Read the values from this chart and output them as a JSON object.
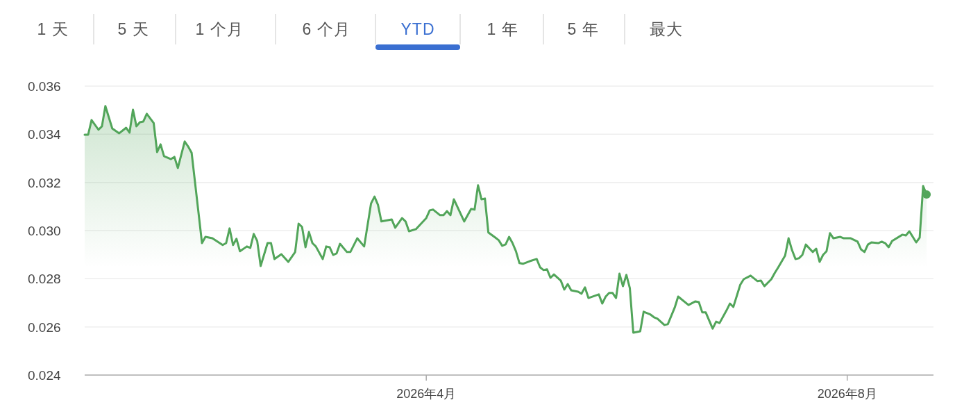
{
  "chart_data": {
    "type": "area",
    "color": "#52a55a",
    "grid": "y",
    "marker": "none",
    "annotations": [
      "1 天",
      "5 天",
      "1 个月",
      "6 个月",
      "YTD",
      "1 年",
      "5 年",
      "最大"
    ],
    "xlim": [
      "2025-12-23",
      "2026-08-26"
    ],
    "ylim": [
      0.024,
      0.036
    ],
    "yticks": [
      0.024,
      0.026,
      0.028,
      {
        "value": 0.03,
        "label": "0.030"
      },
      0.032,
      0.034,
      0.036
    ],
    "xticks": [
      {
        "value": "2026-04-01",
        "label": "2026年4月"
      },
      {
        "value": "2026-08-01",
        "label": "2026年8月"
      }
    ],
    "x": [
      "2025-12-23",
      "2025-12-24",
      "2025-12-25",
      "2025-12-27",
      "2025-12-28",
      "2025-12-29",
      "2025-12-31",
      "2026-01-02",
      "2026-01-04",
      "2026-01-05",
      "2026-01-06",
      "2026-01-07",
      "2026-01-08",
      "2026-01-09",
      "2026-01-10",
      "2026-01-12",
      "2026-01-13",
      "2026-01-14",
      "2026-01-15",
      "2026-01-17",
      "2026-01-18",
      "2026-01-19",
      "2026-01-21",
      "2026-01-22",
      "2026-01-23",
      "2026-01-26",
      "2026-01-27",
      "2026-01-29",
      "2026-02-01",
      "2026-02-02",
      "2026-02-03",
      "2026-02-04",
      "2026-02-05",
      "2026-02-06",
      "2026-02-08",
      "2026-02-09",
      "2026-02-10",
      "2026-02-11",
      "2026-02-12",
      "2026-02-14",
      "2026-02-15",
      "2026-02-16",
      "2026-02-18",
      "2026-02-20",
      "2026-02-22",
      "2026-02-23",
      "2026-02-24",
      "2026-02-25",
      "2026-02-26",
      "2026-02-27",
      "2026-02-28",
      "2026-03-02",
      "2026-03-03",
      "2026-03-04",
      "2026-03-05",
      "2026-03-06",
      "2026-03-07",
      "2026-03-09",
      "2026-03-10",
      "2026-03-12",
      "2026-03-14",
      "2026-03-16",
      "2026-03-17",
      "2026-03-18",
      "2026-03-19",
      "2026-03-22",
      "2026-03-23",
      "2026-03-25",
      "2026-03-26",
      "2026-03-27",
      "2026-03-29",
      "2026-04-01",
      "2026-04-02",
      "2026-04-03",
      "2026-04-05",
      "2026-04-06",
      "2026-04-07",
      "2026-04-08",
      "2026-04-09",
      "2026-04-12",
      "2026-04-14",
      "2026-04-15",
      "2026-04-16",
      "2026-04-17",
      "2026-04-18",
      "2026-04-19",
      "2026-04-21",
      "2026-04-22",
      "2026-04-23",
      "2026-04-24",
      "2026-04-25",
      "2026-04-26",
      "2026-04-27",
      "2026-04-28",
      "2026-04-29",
      "2026-05-01",
      "2026-05-03",
      "2026-05-04",
      "2026-05-05",
      "2026-05-06",
      "2026-05-07",
      "2026-05-08",
      "2026-05-10",
      "2026-05-11",
      "2026-05-12",
      "2026-05-13",
      "2026-05-15",
      "2026-05-16",
      "2026-05-17",
      "2026-05-18",
      "2026-05-21",
      "2026-05-22",
      "2026-05-23",
      "2026-05-24",
      "2026-05-25",
      "2026-05-26",
      "2026-05-27",
      "2026-05-28",
      "2026-05-29",
      "2026-05-30",
      "2026-05-31",
      "2026-06-02",
      "2026-06-03",
      "2026-06-05",
      "2026-06-06",
      "2026-06-07",
      "2026-06-09",
      "2026-06-10",
      "2026-06-12",
      "2026-06-13",
      "2026-06-16",
      "2026-06-18",
      "2026-06-19",
      "2026-06-20",
      "2026-06-21",
      "2026-06-23",
      "2026-06-24",
      "2026-06-25",
      "2026-06-27",
      "2026-06-28",
      "2026-06-29",
      "2026-07-01",
      "2026-07-02",
      "2026-07-04",
      "2026-07-06",
      "2026-07-07",
      "2026-07-08",
      "2026-07-10",
      "2026-07-11",
      "2026-07-12",
      "2026-07-14",
      "2026-07-15",
      "2026-07-16",
      "2026-07-17",
      "2026-07-18",
      "2026-07-19",
      "2026-07-20",
      "2026-07-22",
      "2026-07-23",
      "2026-07-24",
      "2026-07-25",
      "2026-07-26",
      "2026-07-27",
      "2026-07-28",
      "2026-07-30",
      "2026-07-31",
      "2026-08-02",
      "2026-08-04",
      "2026-08-05",
      "2026-08-06",
      "2026-08-07",
      "2026-08-08",
      "2026-08-10",
      "2026-08-11",
      "2026-08-12",
      "2026-08-13",
      "2026-08-14",
      "2026-08-17",
      "2026-08-18",
      "2026-08-19",
      "2026-08-21",
      "2026-08-22",
      "2026-08-23",
      "2026-08-24"
    ],
    "values": [
      0.03398,
      0.03398,
      0.03459,
      0.03419,
      0.03433,
      0.03517,
      0.03424,
      0.03404,
      0.03427,
      0.03407,
      0.03502,
      0.03433,
      0.0345,
      0.03453,
      0.03485,
      0.03447,
      0.03326,
      0.03358,
      0.03309,
      0.03297,
      0.03306,
      0.0326,
      0.0337,
      0.03349,
      0.03323,
      0.02948,
      0.02974,
      0.02968,
      0.0294,
      0.02948,
      0.03009,
      0.0294,
      0.02966,
      0.02914,
      0.02934,
      0.02928,
      0.02986,
      0.02957,
      0.02853,
      0.02948,
      0.02948,
      0.02882,
      0.02902,
      0.0287,
      0.02911,
      0.03029,
      0.03015,
      0.02931,
      0.02994,
      0.02948,
      0.02934,
      0.02882,
      0.02934,
      0.02931,
      0.02899,
      0.02905,
      0.02945,
      0.02911,
      0.02911,
      0.02968,
      0.02934,
      0.03113,
      0.03141,
      0.03107,
      0.03038,
      0.03046,
      0.03012,
      0.03052,
      0.03038,
      0.02997,
      0.03006,
      0.03052,
      0.03084,
      0.03087,
      0.03064,
      0.03064,
      0.03081,
      0.03064,
      0.0313,
      0.03038,
      0.0309,
      0.03087,
      0.03188,
      0.0313,
      0.03133,
      0.02992,
      0.02971,
      0.0296,
      0.02937,
      0.02943,
      0.02974,
      0.02948,
      0.02914,
      0.02865,
      0.02862,
      0.02873,
      0.02882,
      0.02847,
      0.02836,
      0.02839,
      0.02804,
      0.02818,
      0.02792,
      0.02755,
      0.02778,
      0.02752,
      0.02746,
      0.02738,
      0.02764,
      0.0272,
      0.02735,
      0.02697,
      0.02726,
      0.02741,
      0.02741,
      0.0272,
      0.02821,
      0.02769,
      0.02816,
      0.02761,
      0.02576,
      0.02582,
      0.02663,
      0.02651,
      0.0264,
      0.02634,
      0.02608,
      0.02611,
      0.0268,
      0.02726,
      0.02691,
      0.02706,
      0.02703,
      0.0266,
      0.0266,
      0.02593,
      0.02622,
      0.02616,
      0.02668,
      0.02697,
      0.02683,
      0.02775,
      0.02798,
      0.02813,
      0.0279,
      0.02792,
      0.02769,
      0.02798,
      0.02824,
      0.02847,
      0.02896,
      0.02968,
      0.02919,
      0.02882,
      0.02885,
      0.02899,
      0.02942,
      0.02911,
      0.02925,
      0.0287,
      0.02899,
      0.02914,
      0.02989,
      0.02968,
      0.02974,
      0.02968,
      0.02968,
      0.02954,
      0.02922,
      0.02911,
      0.02942,
      0.02951,
      0.02948,
      0.02954,
      0.02948,
      0.02931,
      0.02957,
      0.02983,
      0.0298,
      0.02997,
      0.02951,
      0.02971,
      0.03185,
      0.0315
    ]
  }
}
